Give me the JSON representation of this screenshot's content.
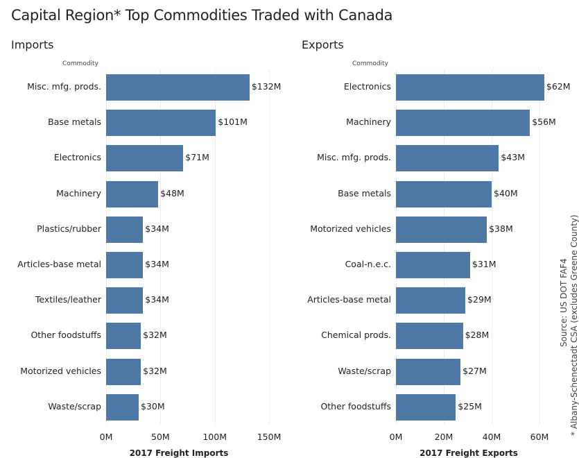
{
  "title": "Capital Region* Top Commodities Traded with Canada",
  "source": "Source: US DOT FAF4",
  "footnote": "* Albany-Schenectadt CSA (excludes Greene County)",
  "bar_color": "#4e79a7",
  "chart_data": [
    {
      "type": "bar",
      "orientation": "horizontal",
      "panel_title": "Imports",
      "column_header": "Commodity",
      "xlabel": "2017 Freight Imports",
      "xlim": [
        0,
        165
      ],
      "ticks": [
        0,
        50,
        100,
        150
      ],
      "tick_labels": [
        "0M",
        "50M",
        "100M",
        "150M"
      ],
      "categories": [
        "Misc. mfg. prods.",
        "Base metals",
        "Electronics",
        "Machinery",
        "Plastics/rubber",
        "Articles-base metal",
        "Textiles/leather",
        "Other foodstuffs",
        "Motorized vehicles",
        "Waste/scrap"
      ],
      "values": [
        132,
        101,
        71,
        48,
        34,
        34,
        34,
        32,
        32,
        30
      ],
      "labels": [
        "$132M",
        "$101M",
        "$71M",
        "$48M",
        "$34M",
        "$34M",
        "$34M",
        "$32M",
        "$32M",
        "$30M"
      ]
    },
    {
      "type": "bar",
      "orientation": "horizontal",
      "panel_title": "Exports",
      "column_header": "Commodity",
      "xlabel": "2017 Freight Exports",
      "xlim": [
        0,
        72
      ],
      "ticks": [
        0,
        20,
        40,
        60
      ],
      "tick_labels": [
        "0M",
        "20M",
        "40M",
        "60M"
      ],
      "categories": [
        "Electronics",
        "Machinery",
        "Misc. mfg. prods.",
        "Base metals",
        "Motorized vehicles",
        "Coal-n.e.c.",
        "Articles-base metal",
        "Chemical prods.",
        "Waste/scrap",
        "Other foodstuffs"
      ],
      "values": [
        62,
        56,
        43,
        40,
        38,
        31,
        29,
        28,
        27,
        25
      ],
      "labels": [
        "$62M",
        "$56M",
        "$43M",
        "$40M",
        "$38M",
        "$31M",
        "$29M",
        "$28M",
        "$27M",
        "$25M"
      ]
    }
  ]
}
